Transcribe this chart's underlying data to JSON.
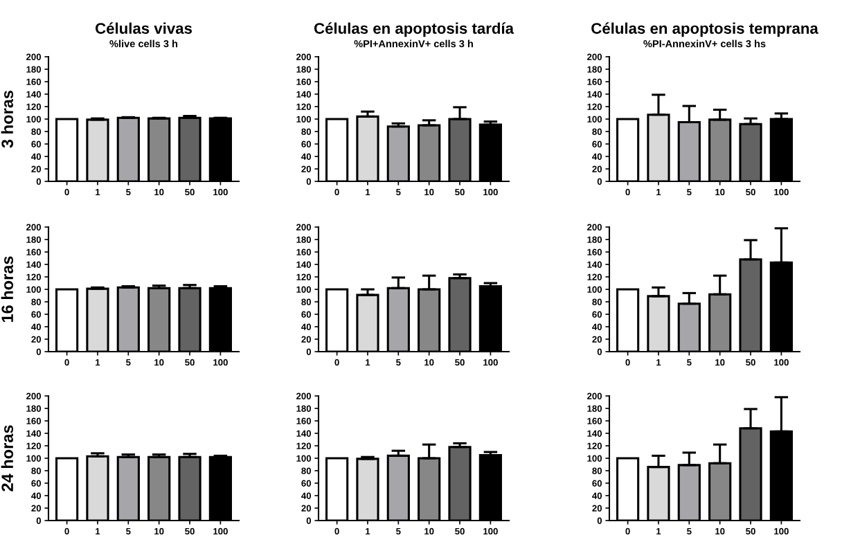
{
  "chart_data": [
    {
      "type": "bar",
      "title": "Células vivas",
      "subtitle": "%live cells 3 h",
      "ylabel": "3 horas",
      "categories": [
        "0",
        "1",
        "5",
        "10",
        "50",
        "100"
      ],
      "values": [
        100,
        99,
        102,
        101,
        102,
        101
      ],
      "errors": [
        null,
        [
          99,
          101
        ],
        [
          102,
          103
        ],
        [
          101,
          102
        ],
        [
          102,
          105
        ],
        [
          101,
          102
        ]
      ],
      "colors": [
        "#ffffff",
        "#d9d9d9",
        "#a6a6aa",
        "#878787",
        "#636363",
        "#000000"
      ],
      "ylim": [
        0,
        200
      ],
      "yticks": [
        0,
        20,
        40,
        60,
        80,
        100,
        120,
        140,
        160,
        180,
        200
      ],
      "grid": false,
      "legend": false
    },
    {
      "type": "bar",
      "title": "Células en apoptosis tardía",
      "subtitle": "%PI+AnnexinV+ cells 3 h",
      "categories": [
        "0",
        "1",
        "5",
        "10",
        "50",
        "100"
      ],
      "values": [
        100,
        104,
        88,
        90,
        100,
        91
      ],
      "errors": [
        null,
        [
          104,
          112
        ],
        [
          88,
          93
        ],
        [
          90,
          98
        ],
        [
          100,
          119
        ],
        [
          91,
          96
        ]
      ],
      "colors": [
        "#ffffff",
        "#d9d9d9",
        "#a6a6aa",
        "#878787",
        "#636363",
        "#000000"
      ],
      "ylim": [
        0,
        200
      ],
      "yticks": [
        0,
        20,
        40,
        60,
        80,
        100,
        120,
        140,
        160,
        180,
        200
      ],
      "grid": false,
      "legend": false
    },
    {
      "type": "bar",
      "title": "Células en apoptosis temprana",
      "subtitle": "%PI-AnnexinV+ cells 3 hs",
      "categories": [
        "0",
        "1",
        "5",
        "10",
        "50",
        "100"
      ],
      "values": [
        100,
        107,
        95,
        99,
        92,
        100
      ],
      "errors": [
        null,
        [
          107,
          139
        ],
        [
          95,
          121
        ],
        [
          99,
          115
        ],
        [
          92,
          101
        ],
        [
          100,
          109
        ]
      ],
      "colors": [
        "#ffffff",
        "#d9d9d9",
        "#a6a6aa",
        "#878787",
        "#636363",
        "#000000"
      ],
      "ylim": [
        0,
        200
      ],
      "yticks": [
        0,
        20,
        40,
        60,
        80,
        100,
        120,
        140,
        160,
        180,
        200
      ],
      "grid": false,
      "legend": false
    },
    {
      "type": "bar",
      "ylabel": "16 horas",
      "categories": [
        "0",
        "1",
        "5",
        "10",
        "50",
        "100"
      ],
      "values": [
        100,
        101,
        103,
        102,
        102,
        102
      ],
      "errors": [
        null,
        [
          101,
          103
        ],
        [
          103,
          105
        ],
        [
          102,
          106
        ],
        [
          102,
          107
        ],
        [
          102,
          105
        ]
      ],
      "colors": [
        "#ffffff",
        "#d9d9d9",
        "#a6a6aa",
        "#878787",
        "#636363",
        "#000000"
      ],
      "ylim": [
        0,
        200
      ],
      "yticks": [
        0,
        20,
        40,
        60,
        80,
        100,
        120,
        140,
        160,
        180,
        200
      ],
      "grid": false,
      "legend": false
    },
    {
      "type": "bar",
      "categories": [
        "0",
        "1",
        "5",
        "10",
        "50",
        "100"
      ],
      "values": [
        100,
        91,
        102,
        100,
        118,
        105
      ],
      "errors": [
        null,
        [
          91,
          100
        ],
        [
          102,
          119
        ],
        [
          100,
          122
        ],
        [
          118,
          124
        ],
        [
          105,
          110
        ]
      ],
      "colors": [
        "#ffffff",
        "#d9d9d9",
        "#a6a6aa",
        "#878787",
        "#636363",
        "#000000"
      ],
      "ylim": [
        0,
        200
      ],
      "yticks": [
        0,
        20,
        40,
        60,
        80,
        100,
        120,
        140,
        160,
        180,
        200
      ],
      "grid": false,
      "legend": false
    },
    {
      "type": "bar",
      "categories": [
        "0",
        "1",
        "5",
        "10",
        "50",
        "100"
      ],
      "values": [
        100,
        89,
        77,
        92,
        148,
        143
      ],
      "errors": [
        null,
        [
          89,
          103
        ],
        [
          77,
          94
        ],
        [
          92,
          122
        ],
        [
          148,
          179
        ],
        [
          143,
          198
        ]
      ],
      "colors": [
        "#ffffff",
        "#d9d9d9",
        "#a6a6aa",
        "#878787",
        "#636363",
        "#000000"
      ],
      "ylim": [
        0,
        200
      ],
      "yticks": [
        0,
        20,
        40,
        60,
        80,
        100,
        120,
        140,
        160,
        180,
        200
      ],
      "grid": false,
      "legend": false
    },
    {
      "type": "bar",
      "ylabel": "24 horas",
      "categories": [
        "0",
        "1",
        "5",
        "10",
        "50",
        "100"
      ],
      "values": [
        100,
        103,
        102,
        102,
        102,
        102
      ],
      "errors": [
        null,
        [
          103,
          108
        ],
        [
          102,
          106
        ],
        [
          102,
          106
        ],
        [
          102,
          107
        ],
        [
          102,
          104
        ]
      ],
      "colors": [
        "#ffffff",
        "#d9d9d9",
        "#a6a6aa",
        "#878787",
        "#636363",
        "#000000"
      ],
      "ylim": [
        0,
        200
      ],
      "yticks": [
        0,
        20,
        40,
        60,
        80,
        100,
        120,
        140,
        160,
        180,
        200
      ],
      "grid": false,
      "legend": false
    },
    {
      "type": "bar",
      "categories": [
        "0",
        "1",
        "5",
        "10",
        "50",
        "100"
      ],
      "values": [
        100,
        99,
        104,
        100,
        118,
        105
      ],
      "errors": [
        null,
        [
          99,
          102
        ],
        [
          104,
          112
        ],
        [
          100,
          122
        ],
        [
          118,
          124
        ],
        [
          105,
          110
        ]
      ],
      "colors": [
        "#ffffff",
        "#d9d9d9",
        "#a6a6aa",
        "#878787",
        "#636363",
        "#000000"
      ],
      "ylim": [
        0,
        200
      ],
      "yticks": [
        0,
        20,
        40,
        60,
        80,
        100,
        120,
        140,
        160,
        180,
        200
      ],
      "grid": false,
      "legend": false
    },
    {
      "type": "bar",
      "categories": [
        "0",
        "1",
        "5",
        "10",
        "50",
        "100"
      ],
      "values": [
        100,
        86,
        89,
        92,
        148,
        143
      ],
      "errors": [
        null,
        [
          86,
          104
        ],
        [
          89,
          109
        ],
        [
          92,
          122
        ],
        [
          148,
          179
        ],
        [
          143,
          198
        ]
      ],
      "colors": [
        "#ffffff",
        "#d9d9d9",
        "#a6a6aa",
        "#878787",
        "#636363",
        "#000000"
      ],
      "ylim": [
        0,
        200
      ],
      "yticks": [
        0,
        20,
        40,
        60,
        80,
        100,
        120,
        140,
        160,
        180,
        200
      ],
      "grid": false,
      "legend": false
    }
  ]
}
